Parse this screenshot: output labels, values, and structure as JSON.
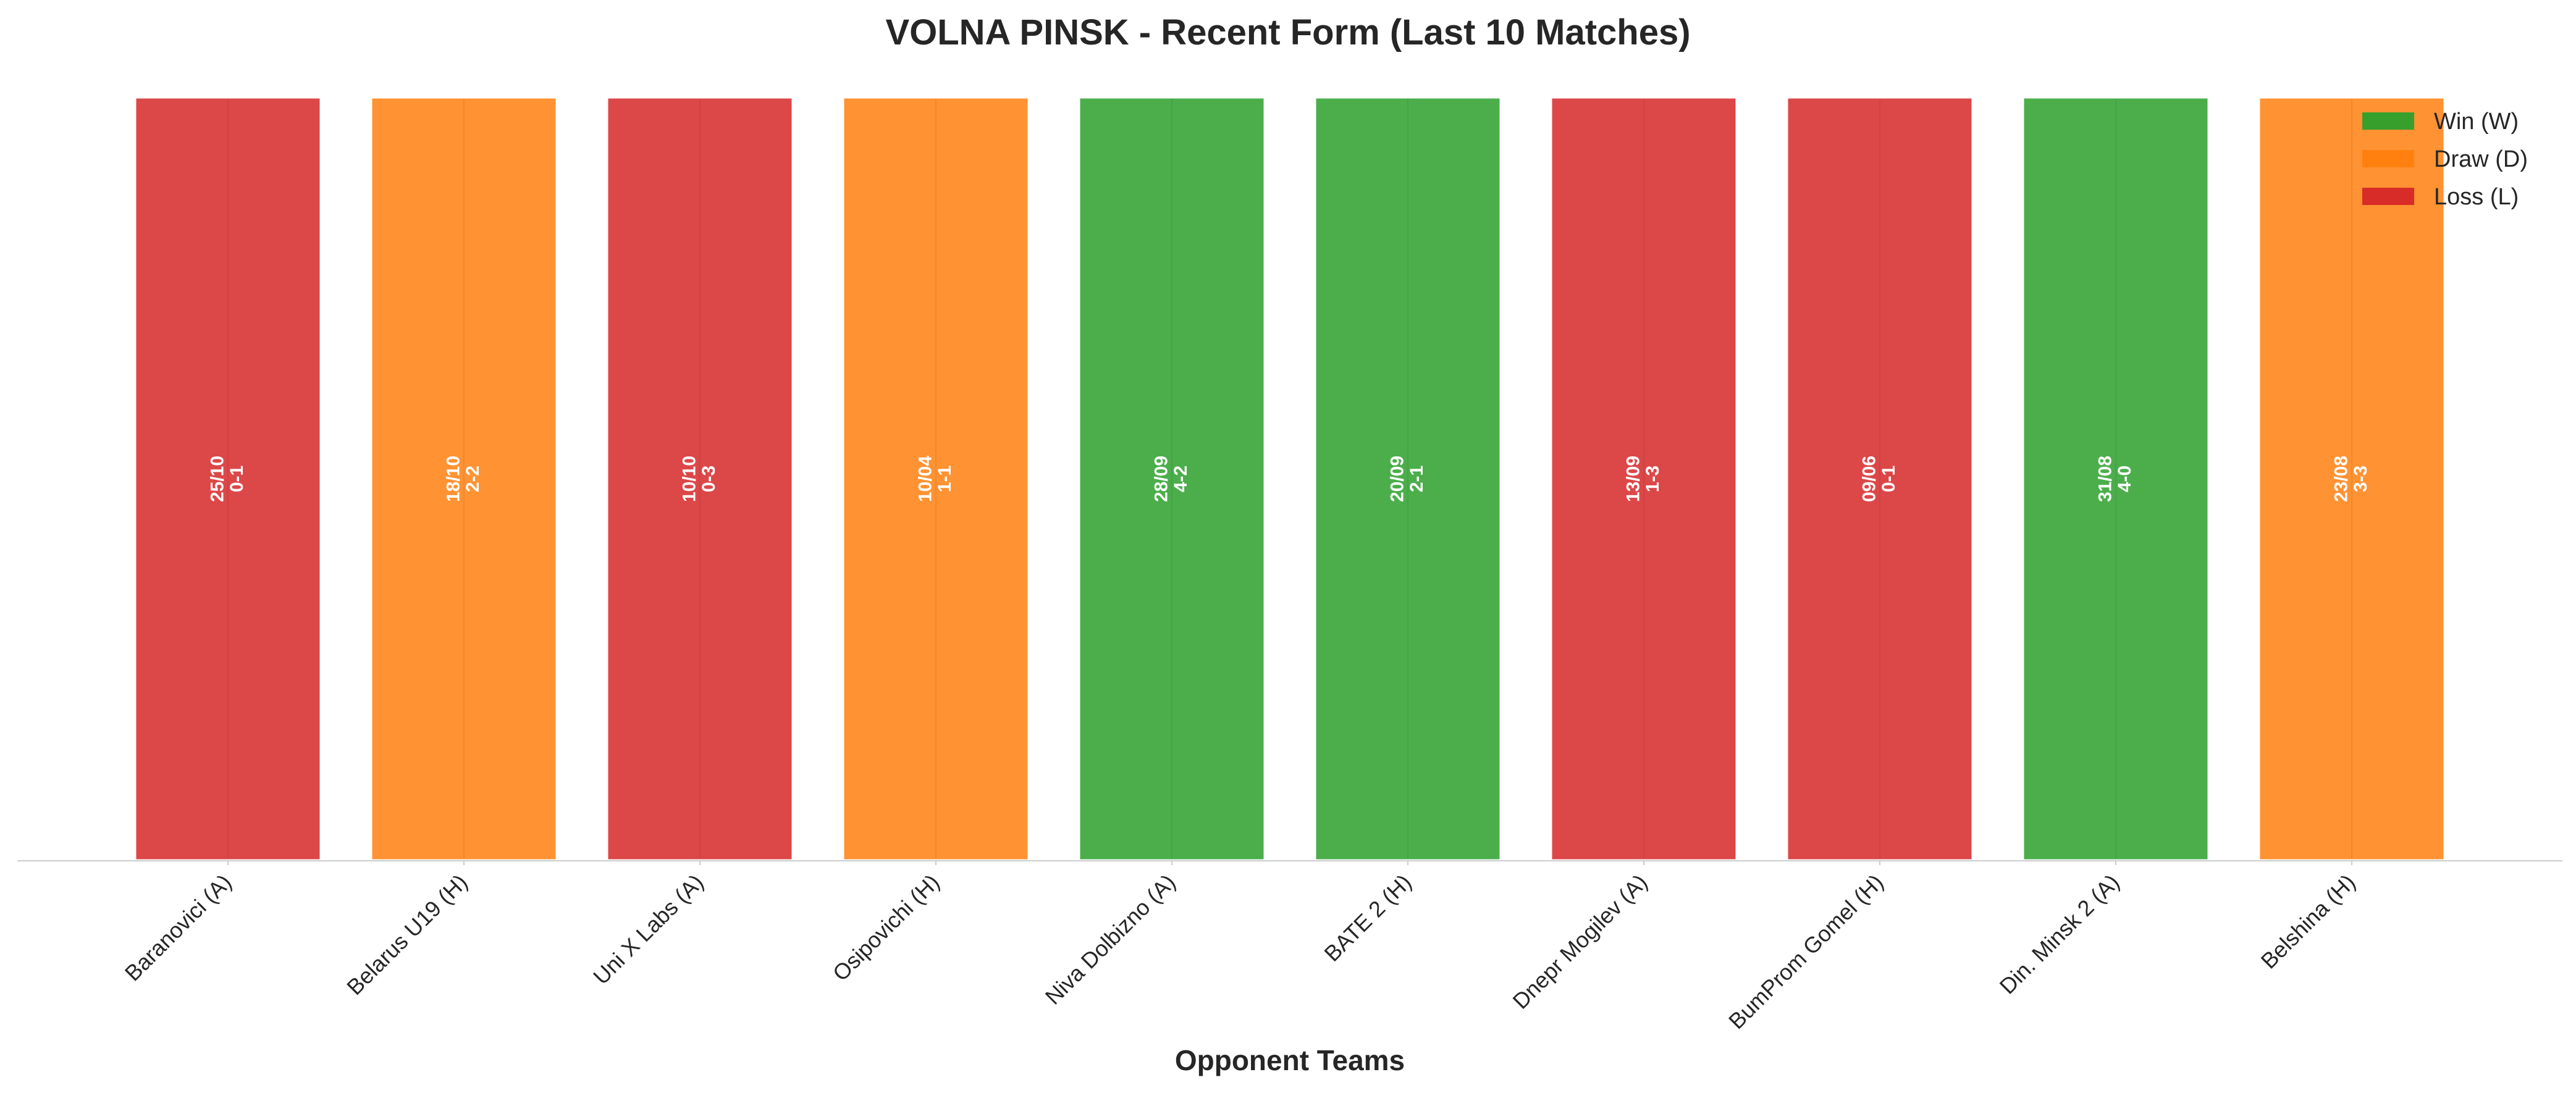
{
  "chart_data": {
    "type": "bar",
    "title": "VOLNA PINSK - Recent Form (Last 10 Matches)",
    "xlabel": "Opponent Teams",
    "ylabel": "",
    "ylim": [
      0,
      1
    ],
    "grid": false,
    "legend_position": "top-right",
    "categories": [
      "Baranovici (A)",
      "Belarus U19 (H)",
      "Uni X Labs (A)",
      "Osipovichi (H)",
      "Niva Dolbizno (A)",
      "BATE 2 (H)",
      "Dnepr Mogilev (A)",
      "BumProm Gomel (H)",
      "Din. Minsk 2 (A)",
      "Belshina (H)"
    ],
    "values": [
      1,
      1,
      1,
      1,
      1,
      1,
      1,
      1,
      1,
      1
    ],
    "results": [
      "L",
      "D",
      "L",
      "D",
      "W",
      "W",
      "L",
      "L",
      "W",
      "D"
    ],
    "dates": [
      "25/10",
      "18/10",
      "10/10",
      "10/04",
      "28/09",
      "20/09",
      "13/09",
      "09/06",
      "31/08",
      "23/08"
    ],
    "scores": [
      "0-1",
      "2-2",
      "0-3",
      "1-1",
      "4-2",
      "2-1",
      "1-3",
      "0-1",
      "4-0",
      "3-3"
    ],
    "legend": [
      {
        "key": "W",
        "label": "Win (W)",
        "color": "#2ca02c"
      },
      {
        "key": "D",
        "label": "Draw (D)",
        "color": "#ff7f0e"
      },
      {
        "key": "L",
        "label": "Loss (L)",
        "color": "#d62728"
      }
    ]
  }
}
